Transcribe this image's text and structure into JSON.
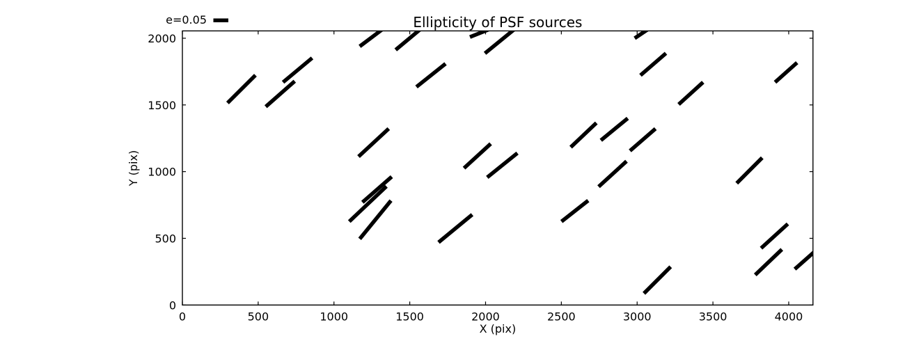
{
  "chart_data": {
    "type": "scatter",
    "subtype": "ellipticity-whisker-map",
    "title": "Ellipticity of PSF sources",
    "xlabel": "X (pix)",
    "ylabel": "Y (pix)",
    "xlim": [
      0,
      4160
    ],
    "ylim": [
      0,
      2055
    ],
    "xticks": [
      0,
      500,
      1000,
      1500,
      2000,
      2500,
      3000,
      3500,
      4000
    ],
    "yticks": [
      0,
      500,
      1000,
      1500,
      2000
    ],
    "grid": false,
    "background_color": "#ffffff",
    "stick_color": "#000000",
    "legend": {
      "label": "e=0.05",
      "position": "top-left-outside"
    },
    "segments": [
      [
        298,
        1515,
        482,
        1723
      ],
      [
        550,
        1487,
        741,
        1678
      ],
      [
        664,
        1670,
        856,
        1852
      ],
      [
        1170,
        1939,
        1320,
        2067
      ],
      [
        1162,
        1113,
        1361,
        1322
      ],
      [
        1407,
        1913,
        1575,
        2072
      ],
      [
        1897,
        2009,
        2040,
        2074
      ],
      [
        1996,
        1887,
        2200,
        2076
      ],
      [
        1544,
        1635,
        1736,
        1809
      ],
      [
        1858,
        1026,
        2034,
        1209
      ],
      [
        2011,
        957,
        2210,
        1139
      ],
      [
        2562,
        1183,
        2731,
        1365
      ],
      [
        2984,
        2000,
        3090,
        2081
      ],
      [
        3022,
        1722,
        3190,
        1887
      ],
      [
        3274,
        1504,
        3435,
        1670
      ],
      [
        3910,
        1670,
        4055,
        1817
      ],
      [
        2761,
        1235,
        2938,
        1400
      ],
      [
        2953,
        1156,
        3121,
        1322
      ],
      [
        1101,
        626,
        1346,
        890
      ],
      [
        1188,
        770,
        1381,
        962
      ],
      [
        1170,
        496,
        1376,
        783
      ],
      [
        1690,
        470,
        1912,
        678
      ],
      [
        2501,
        626,
        2677,
        783
      ],
      [
        2746,
        887,
        2930,
        1078
      ],
      [
        3657,
        913,
        3825,
        1104
      ],
      [
        3818,
        426,
        3994,
        608
      ],
      [
        3779,
        226,
        3955,
        417
      ],
      [
        4040,
        269,
        4230,
        460
      ],
      [
        3045,
        87,
        3221,
        287
      ]
    ]
  }
}
